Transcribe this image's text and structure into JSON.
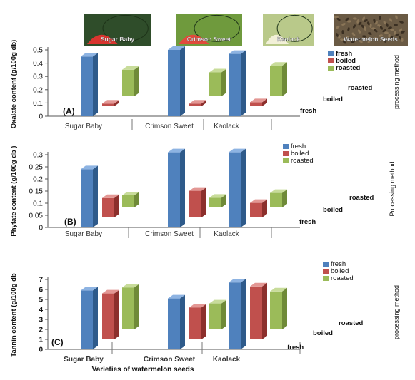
{
  "photos": [
    {
      "label": "Sugar Baby",
      "color": "#2f4d2a",
      "flesh": "#d9352f"
    },
    {
      "label": "Crimson Sweet",
      "color": "#6f9a3d",
      "flesh": "#e24a3b"
    },
    {
      "label": "Kaolack",
      "color": "#b9c98a",
      "flesh": "#f2f0d8"
    },
    {
      "label": "Watermelon Seeds",
      "color": "#6a5a44",
      "flesh": "#9c8a6e"
    }
  ],
  "colors": {
    "fresh": {
      "front": "#4f81bd",
      "side": "#2e5a8a",
      "top": "#8db3e2"
    },
    "boiled": {
      "front": "#c0504d",
      "side": "#8c2f2c",
      "top": "#e39794"
    },
    "roasted": {
      "front": "#9bbb59",
      "side": "#6f8a38",
      "top": "#c8dc9a"
    }
  },
  "chart_data": [
    {
      "type": "bar",
      "panel_label": "(A)",
      "categories": [
        "Sugar Baby",
        "Crimson Sweet",
        "Kaolack"
      ],
      "ylabel": "Oxalate content (g/100g db)",
      "ylim": [
        0,
        0.5
      ],
      "yticks": [
        "0",
        "0.1",
        "0.2",
        "0.3",
        "0.4",
        "0.5"
      ],
      "depth_label": "processing method",
      "depth_labels": [
        "fresh",
        "boiled",
        "roasted"
      ],
      "legend": [
        "fresh",
        "boiled",
        "roasted"
      ],
      "series": [
        {
          "name": "fresh",
          "values": [
            0.45,
            0.5,
            0.47
          ]
        },
        {
          "name": "boiled",
          "values": [
            0.02,
            0.02,
            0.03
          ]
        },
        {
          "name": "roasted",
          "values": [
            0.2,
            0.18,
            0.23
          ]
        }
      ]
    },
    {
      "type": "bar",
      "panel_label": "(B)",
      "categories": [
        "Sugar Baby",
        "Crimson Sweet",
        "Kaolack"
      ],
      "ylabel": "Phytate content (g/100g db )",
      "ylim": [
        0,
        0.3
      ],
      "yticks": [
        "0",
        "0.05",
        "0.1",
        "0.15",
        "0.2",
        "0.25",
        "0.3"
      ],
      "depth_label": "Processing method",
      "depth_labels": [
        "fresh",
        "boiled",
        "roasted"
      ],
      "legend": [
        "fresh",
        "boiled",
        "roasted"
      ],
      "series": [
        {
          "name": "fresh",
          "values": [
            0.24,
            0.31,
            0.31
          ]
        },
        {
          "name": "boiled",
          "values": [
            0.08,
            0.11,
            0.06
          ]
        },
        {
          "name": "roasted",
          "values": [
            0.05,
            0.04,
            0.06
          ]
        }
      ]
    },
    {
      "type": "bar",
      "panel_label": "(C)",
      "categories": [
        "Sugar Baby",
        "Crimson Sweet",
        "Kaolack"
      ],
      "xlabel": "Varieties of watermelon seeds",
      "ylabel": "Tannin content (g/100g db",
      "ylim": [
        0,
        7
      ],
      "yticks": [
        "0",
        "1",
        "2",
        "3",
        "4",
        "5",
        "6",
        "7"
      ],
      "depth_label": "processing method",
      "depth_labels": [
        "fresh",
        "boiled",
        "roasted"
      ],
      "legend": [
        "fresh",
        "boiled",
        "roasted"
      ],
      "series": [
        {
          "name": "fresh",
          "values": [
            5.9,
            5.1,
            6.7
          ]
        },
        {
          "name": "boiled",
          "values": [
            4.6,
            3.2,
            5.3
          ]
        },
        {
          "name": "roasted",
          "values": [
            4.2,
            2.6,
            3.8
          ]
        }
      ]
    }
  ]
}
